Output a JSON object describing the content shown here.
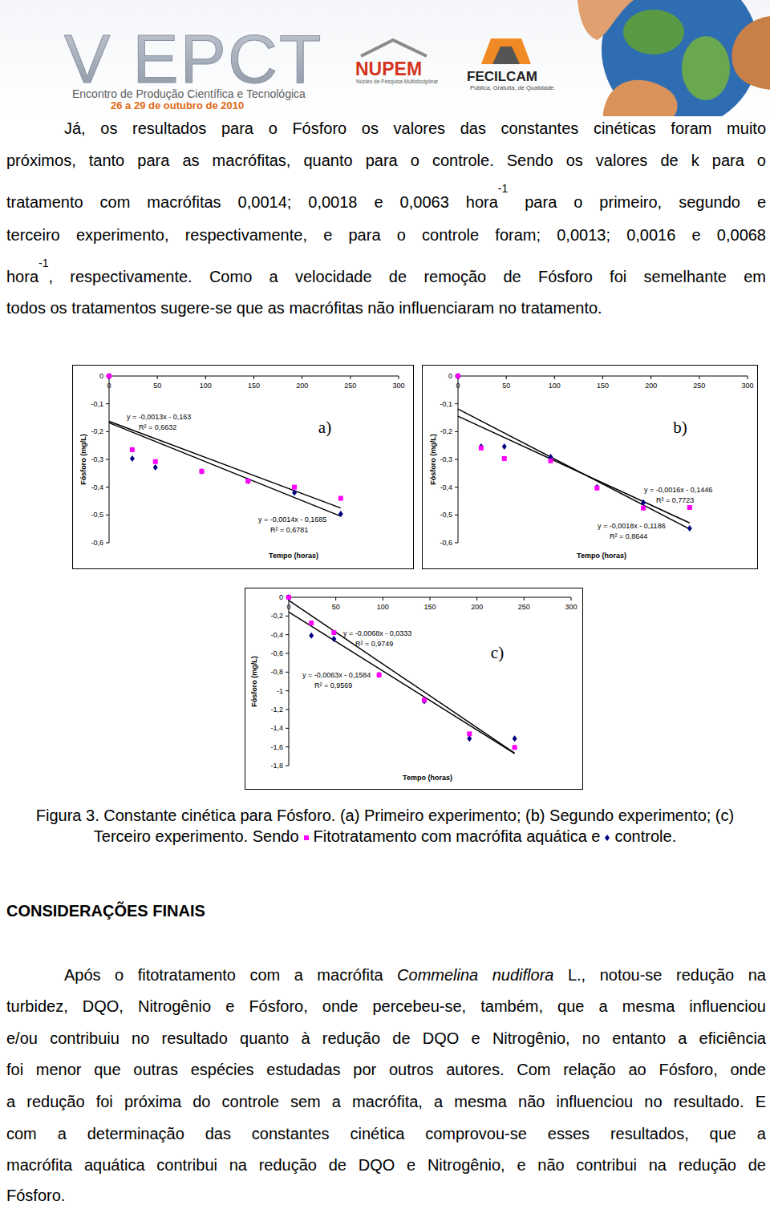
{
  "header": {
    "title": "V EPCT",
    "subtitle": "Encontro de Produção Científica e Tecnológica",
    "dates": "26 a 29 de outubro de 2010",
    "logos": [
      {
        "name": "NUPEM",
        "tagline": "Núcleo de Pesquisa Multidisciplinar"
      },
      {
        "name": "FECILCAM",
        "tagline": "Pública, Gratuita, de Qualidade."
      }
    ]
  },
  "body": {
    "lines": [
      [
        "Já, os resultados para o Fósforo os valores das constantes cinéticas foram muito"
      ],
      [
        "próximos, tanto para as macrófitas, quanto para o controle. Sendo os valores de k para o"
      ],
      [
        "tratamento com macrófitas 0,0014; 0,0018 e 0,0063 hora",
        {
          "sup": "-1"
        },
        " para o primeiro, segundo e"
      ],
      [
        "terceiro experimento, respectivamente, e para o controle foram; 0,0013; 0,0016 e 0,0068"
      ],
      [
        "hora",
        {
          "sup": "-1"
        },
        ", respectivamente. Como a velocidade de remoção de Fósforo foi semelhante em"
      ],
      [
        "todos os tratamentos sugere-se que as macrófitas não influenciaram no tratamento."
      ]
    ]
  },
  "chart_data": [
    {
      "type": "scatter",
      "panel": "a)",
      "x_label": "Tempo (horas)",
      "y_label": "Fósforo (mg/L)",
      "x": [
        0,
        24,
        48,
        96,
        144,
        192,
        240
      ],
      "xlim": [
        0,
        300
      ],
      "xticks": [
        0,
        50,
        100,
        150,
        200,
        250,
        300
      ],
      "ylim": [
        -0.6,
        0
      ],
      "yticks": [
        0,
        {
          "value": -0.1,
          "label": "-0,1"
        },
        {
          "value": -0.2,
          "label": "-0,2"
        },
        {
          "value": -0.3,
          "label": "-0,3"
        },
        {
          "value": -0.4,
          "label": "-0,4"
        },
        {
          "value": -0.5,
          "label": "-0,5"
        },
        {
          "value": -0.6,
          "label": "-0,6"
        }
      ],
      "series": [
        {
          "color": "#ff00ff",
          "marker": "square",
          "values": [
            0,
            -0.265,
            -0.308,
            -0.343,
            -0.378,
            -0.4,
            -0.44
          ],
          "trendline": {
            "slope": -0.0014,
            "intercept": -0.1685,
            "equation": "y = -0,0014x - 0,1685",
            "r2": "R² = 0,6781"
          }
        },
        {
          "color": "#000080",
          "marker": "diamond",
          "values": [
            0,
            -0.297,
            -0.329,
            -0.343,
            -0.378,
            -0.42,
            -0.496
          ],
          "trendline": {
            "slope": -0.0013,
            "intercept": -0.163,
            "equation": "y = -0,0013x - 0,163",
            "r2": "R² = 0,6632"
          }
        }
      ]
    },
    {
      "type": "scatter",
      "panel": "b)",
      "x_label": "Tempo (horas)",
      "y_label": "Fósforo (mg/L)",
      "x": [
        0,
        24,
        48,
        96,
        144,
        192,
        240
      ],
      "xlim": [
        0,
        300
      ],
      "xticks": [
        0,
        50,
        100,
        150,
        200,
        250,
        300
      ],
      "ylim": [
        -0.6,
        0
      ],
      "yticks": [
        0,
        {
          "value": -0.1,
          "label": "-0,1"
        },
        {
          "value": -0.2,
          "label": "-0,2"
        },
        {
          "value": -0.3,
          "label": "-0,3"
        },
        {
          "value": -0.4,
          "label": "-0,4"
        },
        {
          "value": -0.5,
          "label": "-0,5"
        },
        {
          "value": -0.6,
          "label": "-0,6"
        }
      ],
      "series": [
        {
          "color": "#ff00ff",
          "marker": "square",
          "values": [
            0,
            -0.259,
            -0.297,
            -0.305,
            -0.403,
            -0.475,
            -0.473
          ],
          "trendline": {
            "slope": -0.0018,
            "intercept": -0.1186,
            "equation": "y = -0,0018x - 0,1186",
            "r2": "R² = 0,8644"
          }
        },
        {
          "color": "#000080",
          "marker": "diamond",
          "values": [
            0,
            -0.254,
            -0.254,
            -0.291,
            -0.4,
            -0.455,
            -0.548
          ],
          "trendline": {
            "slope": -0.0016,
            "intercept": -0.1446,
            "equation": "y = -0,0016x - 0,1446",
            "r2": "R² = 0,7723"
          }
        }
      ]
    },
    {
      "type": "scatter",
      "panel": "c)",
      "x_label": "Tempo (horas)",
      "y_label": "Fósforo (mg/L)",
      "x": [
        0,
        24,
        48,
        96,
        144,
        192,
        240
      ],
      "xlim": [
        0,
        300
      ],
      "xticks": [
        0,
        50,
        100,
        150,
        200,
        250,
        300
      ],
      "ylim": [
        -1.8,
        0
      ],
      "yticks": [
        0,
        {
          "value": -0.2,
          "label": "-0,2"
        },
        {
          "value": -0.4,
          "label": "-0,4"
        },
        {
          "value": -0.6,
          "label": "-0,6"
        },
        {
          "value": -0.8,
          "label": "-0,8"
        },
        -1,
        {
          "value": -1.2,
          "label": "-1,2"
        },
        {
          "value": -1.4,
          "label": "-1,4"
        },
        {
          "value": -1.6,
          "label": "-1,6"
        },
        {
          "value": -1.8,
          "label": "-1,8"
        }
      ],
      "series": [
        {
          "color": "#ff00ff",
          "marker": "square",
          "values": [
            0,
            -0.275,
            -0.378,
            -0.83,
            -1.1,
            -1.46,
            -1.605
          ],
          "trendline": {
            "slope": -0.0063,
            "intercept": -0.1584,
            "equation": "y = -0,0063x - 0,1584",
            "r2": "R² = 0,9569"
          }
        },
        {
          "color": "#000080",
          "marker": "diamond",
          "values": [
            0,
            -0.41,
            -0.446,
            -0.83,
            -1.11,
            -1.51,
            -1.51
          ],
          "trendline": {
            "slope": -0.0068,
            "intercept": -0.0333,
            "equation": "y = -0,0068x - 0,0333",
            "r2": "R² = 0,9749"
          }
        }
      ]
    }
  ],
  "caption": {
    "text": "Figura 3. Constante cinética para Fósforo. (a) Primeiro experimento; (b) Segundo experimento; (c) Terceiro experimento. Sendo",
    "legend": [
      {
        "marker": "square",
        "color": "#ff00ff",
        "label": "Fitotratamento com macrófita aquática"
      },
      {
        "marker": "diamond",
        "color": "#000080",
        "label": "controle"
      }
    ],
    "joiner": "e",
    "end": "."
  },
  "conclusions": {
    "heading": "CONSIDERAÇÕES FINAIS",
    "lines": [
      [
        "Após o fitotratamento com a macrófita ",
        {
          "italic": "Commelina nudiflora"
        },
        " L., notou-se redução na"
      ],
      [
        "turbidez, DQO, Nitrogênio e Fósforo, onde percebeu-se, também, que a mesma influenciou"
      ],
      [
        "e/ou contribuiu no resultado quanto à redução de DQO e Nitrogênio, no entanto a eficiência"
      ],
      [
        "foi menor que outras espécies estudadas por outros autores. Com relação ao Fósforo, onde"
      ],
      [
        "a redução foi próxima do controle sem a macrófita, a mesma não influenciou no resultado. E"
      ],
      [
        "com a determinação das constantes cinética comprovou-se esses resultados, que a"
      ],
      [
        "macrófita aquática contribui na redução de DQO e Nitrogênio, e não contribui na redução de"
      ],
      [
        "Fósforo."
      ]
    ]
  }
}
